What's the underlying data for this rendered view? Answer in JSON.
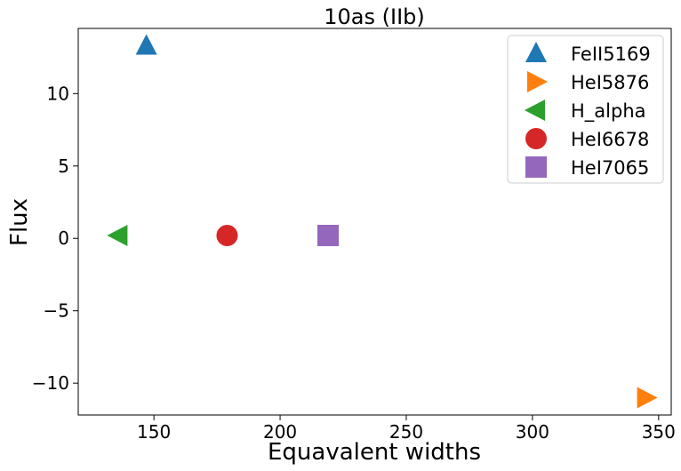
{
  "chart_data": {
    "type": "scatter",
    "title": "10as (IIb)",
    "xlabel": "Equavalent widths",
    "ylabel": "Flux",
    "xlim": [
      120,
      355
    ],
    "ylim": [
      -12.2,
      14.5
    ],
    "xticks": [
      150,
      200,
      250,
      300,
      350
    ],
    "yticks": [
      -10,
      -5,
      0,
      5,
      10
    ],
    "x_tick_labels": [
      "150",
      "200",
      "250",
      "300",
      "350"
    ],
    "y_tick_labels": [
      "−10",
      "−5",
      "0",
      "5",
      "10"
    ],
    "grid": false,
    "legend_position": "top-right",
    "series": [
      {
        "name": "FeII5169",
        "marker": "triangle-up",
        "color": "#1f77b4",
        "x": [
          147
        ],
        "y": [
          13.3
        ]
      },
      {
        "name": "HeI5876",
        "marker": "triangle-right",
        "color": "#ff7f0e",
        "x": [
          345
        ],
        "y": [
          -11.0
        ]
      },
      {
        "name": "H_alpha",
        "marker": "triangle-left",
        "color": "#2ca02c",
        "x": [
          136
        ],
        "y": [
          0.2
        ]
      },
      {
        "name": "HeI6678",
        "marker": "circle",
        "color": "#d62728",
        "x": [
          179
        ],
        "y": [
          0.2
        ]
      },
      {
        "name": "HeI7065",
        "marker": "square",
        "color": "#9467bd",
        "x": [
          219
        ],
        "y": [
          0.2
        ]
      }
    ]
  }
}
